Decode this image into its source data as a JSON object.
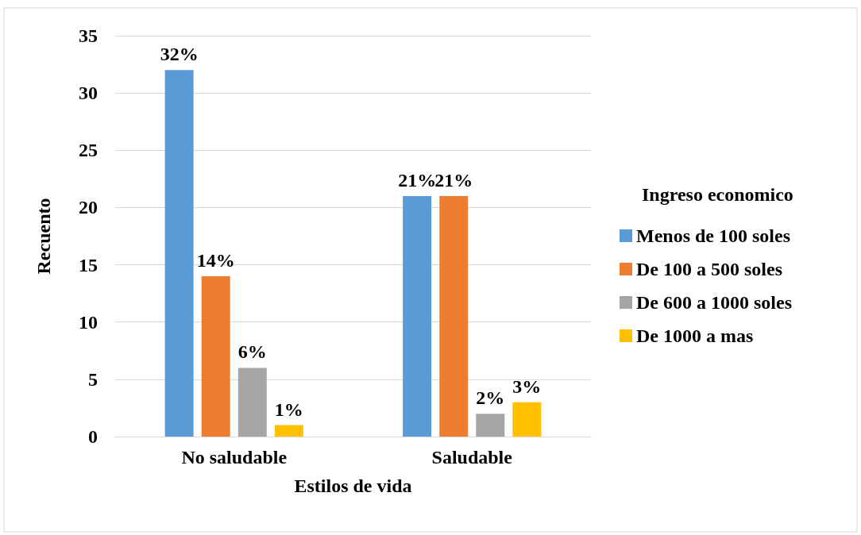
{
  "chart_data": {
    "type": "bar",
    "xlabel": "Estilos de vida",
    "ylabel": "Recuento",
    "legend_title": "Ingreso economico",
    "categories": [
      "No saludable",
      "Saludable"
    ],
    "series": [
      {
        "name": "Menos de 100 soles",
        "color": "#5b9bd5",
        "values": [
          32,
          21
        ],
        "value_labels": [
          "32%",
          "21%"
        ]
      },
      {
        "name": "De 100 a 500 soles",
        "color": "#ed7d31",
        "values": [
          14,
          21
        ],
        "value_labels": [
          "14%",
          "21%"
        ]
      },
      {
        "name": "De 600 a 1000 soles",
        "color": "#a5a5a5",
        "values": [
          6,
          2
        ],
        "value_labels": [
          "6%",
          "2%"
        ]
      },
      {
        "name": "De 1000 a mas",
        "color": "#ffc000",
        "values": [
          1,
          3
        ],
        "value_labels": [
          "1%",
          "3%"
        ]
      }
    ],
    "ylim": [
      0,
      35
    ],
    "yticks": [
      0,
      5,
      10,
      15,
      20,
      25,
      30,
      35
    ],
    "grid": "y",
    "legend": "right"
  }
}
